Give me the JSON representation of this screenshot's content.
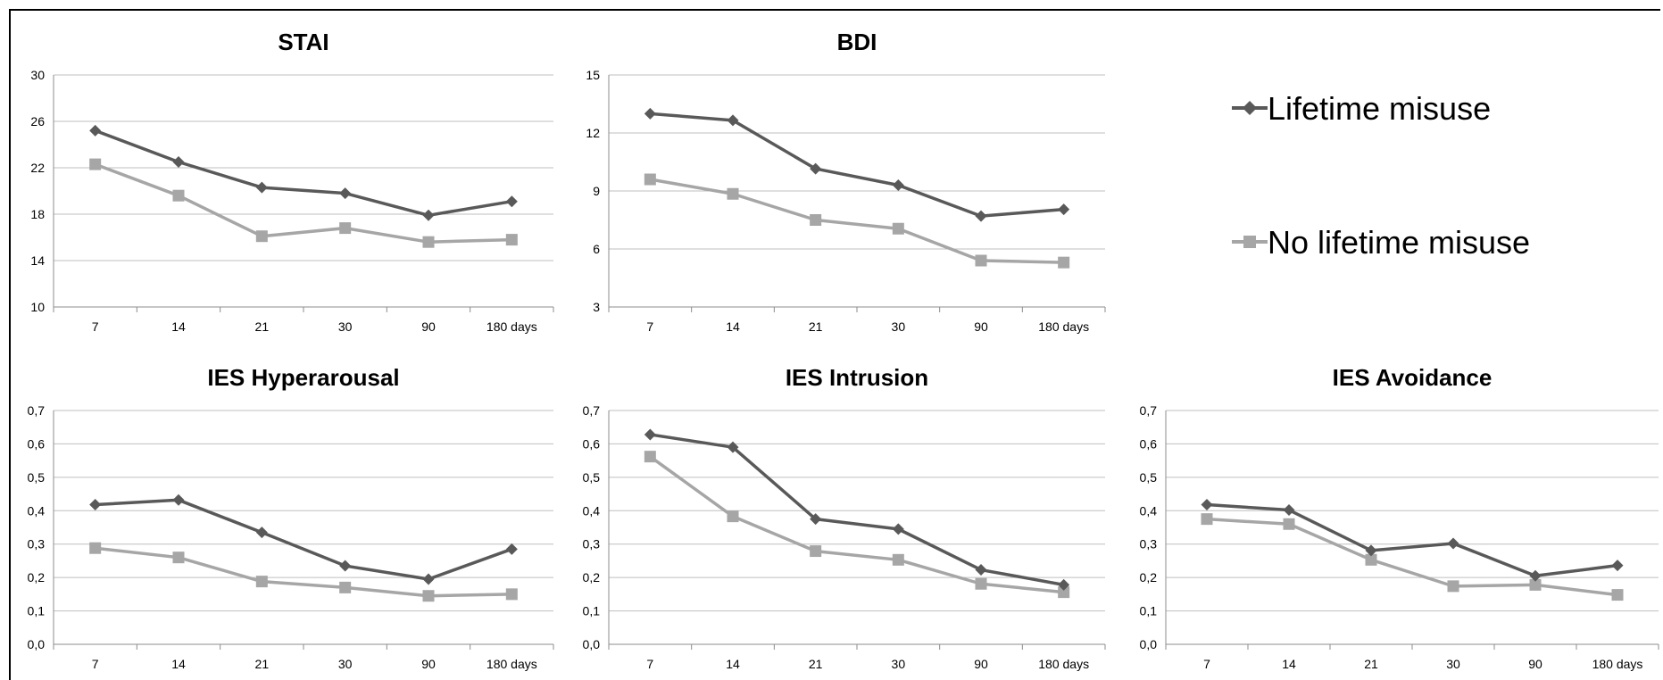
{
  "legend": [
    {
      "label": "Lifetime misuse",
      "color": "#595959",
      "marker": "diamond"
    },
    {
      "label": "No lifetime misuse",
      "color": "#a6a6a6",
      "marker": "square"
    }
  ],
  "chart_data": [
    {
      "id": "stai",
      "type": "line",
      "title": "STAI",
      "categories": [
        "7",
        "14",
        "21",
        "30",
        "90",
        "180 days"
      ],
      "ylim": [
        10,
        30
      ],
      "yticks": [
        "10",
        "14",
        "18",
        "22",
        "26",
        "30"
      ],
      "grid": true,
      "series": [
        {
          "name": "Lifetime misuse",
          "values": [
            25.2,
            22.5,
            20.3,
            19.8,
            17.9,
            19.1
          ]
        },
        {
          "name": "No lifetime misuse",
          "values": [
            22.3,
            19.6,
            16.1,
            16.8,
            15.6,
            15.8
          ]
        }
      ]
    },
    {
      "id": "bdi",
      "type": "line",
      "title": "BDI",
      "categories": [
        "7",
        "14",
        "21",
        "30",
        "90",
        "180 days"
      ],
      "ylim": [
        3,
        15
      ],
      "yticks": [
        "3",
        "6",
        "9",
        "12",
        "15"
      ],
      "grid": true,
      "series": [
        {
          "name": "Lifetime misuse",
          "values": [
            13.0,
            12.65,
            10.15,
            9.3,
            7.7,
            8.05
          ]
        },
        {
          "name": "No lifetime misuse",
          "values": [
            9.6,
            8.85,
            7.5,
            7.05,
            5.4,
            5.3
          ]
        }
      ]
    },
    {
      "id": "ies-hyperarousal",
      "type": "line",
      "title": "IES Hyperarousal",
      "categories": [
        "7",
        "14",
        "21",
        "30",
        "90",
        "180 days"
      ],
      "ylim": [
        0,
        0.7
      ],
      "yticks": [
        "0,0",
        "0,1",
        "0,2",
        "0,3",
        "0,4",
        "0,5",
        "0,6",
        "0,7"
      ],
      "grid": true,
      "series": [
        {
          "name": "Lifetime misuse",
          "values": [
            0.418,
            0.432,
            0.335,
            0.235,
            0.195,
            0.285
          ]
        },
        {
          "name": "No lifetime misuse",
          "values": [
            0.288,
            0.26,
            0.188,
            0.17,
            0.145,
            0.15
          ]
        }
      ]
    },
    {
      "id": "ies-intrusion",
      "type": "line",
      "title": "IES Intrusion",
      "categories": [
        "7",
        "14",
        "21",
        "30",
        "90",
        "180 days"
      ],
      "ylim": [
        0,
        0.7
      ],
      "yticks": [
        "0,0",
        "0,1",
        "0,2",
        "0,3",
        "0,4",
        "0,5",
        "0,6",
        "0,7"
      ],
      "grid": true,
      "series": [
        {
          "name": "Lifetime misuse",
          "values": [
            0.628,
            0.59,
            0.375,
            0.345,
            0.223,
            0.178
          ]
        },
        {
          "name": "No lifetime misuse",
          "values": [
            0.562,
            0.383,
            0.279,
            0.253,
            0.181,
            0.156
          ]
        }
      ]
    },
    {
      "id": "ies-avoidance",
      "type": "line",
      "title": "IES Avoidance",
      "categories": [
        "7",
        "14",
        "21",
        "30",
        "90",
        "180 days"
      ],
      "ylim": [
        0,
        0.7
      ],
      "yticks": [
        "0,0",
        "0,1",
        "0,2",
        "0,3",
        "0,4",
        "0,5",
        "0,6",
        "0,7"
      ],
      "grid": true,
      "series": [
        {
          "name": "Lifetime misuse",
          "values": [
            0.418,
            0.402,
            0.281,
            0.302,
            0.205,
            0.236
          ]
        },
        {
          "name": "No lifetime misuse",
          "values": [
            0.375,
            0.36,
            0.253,
            0.174,
            0.178,
            0.148
          ]
        }
      ]
    }
  ]
}
